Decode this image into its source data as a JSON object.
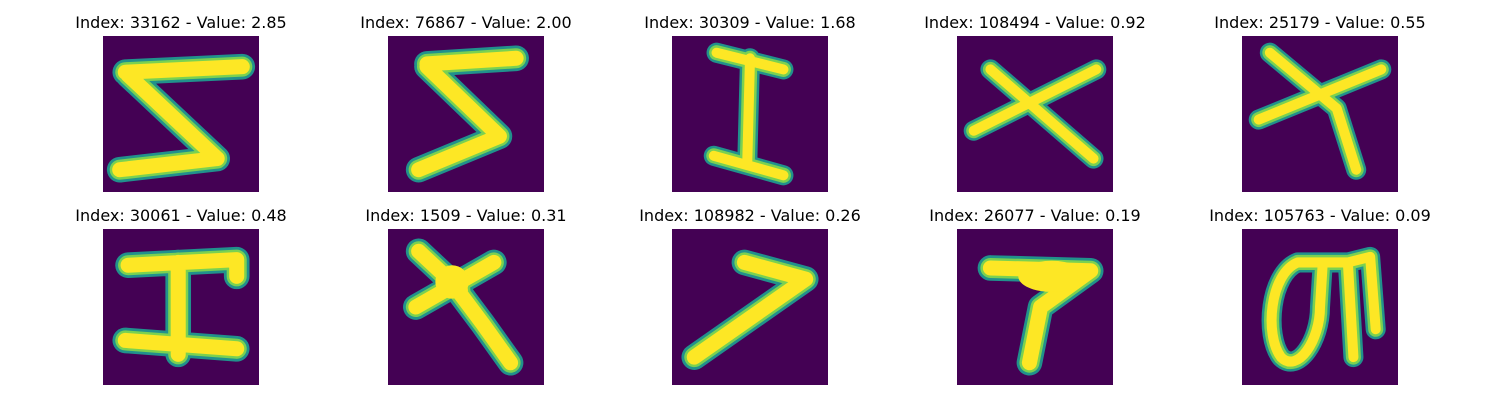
{
  "colors": {
    "background": "#440154",
    "stroke_edge": "#21918c",
    "stroke_mid": "#7ad151",
    "stroke_core": "#fde725"
  },
  "panels": [
    {
      "title": "Index: 33162 - Value: 2.85",
      "glyph": "five-like"
    },
    {
      "title": "Index: 76867 - Value: 2.00",
      "glyph": "five-like"
    },
    {
      "title": "Index: 30309 - Value: 1.68",
      "glyph": "capital-i"
    },
    {
      "title": "Index: 108494 - Value: 0.92",
      "glyph": "x-cross"
    },
    {
      "title": "Index: 25179 - Value: 0.55",
      "glyph": "x-cross"
    },
    {
      "title": "Index: 30061 - Value: 0.48",
      "glyph": "capital-i"
    },
    {
      "title": "Index: 1509 - Value: 0.31",
      "glyph": "x-cross"
    },
    {
      "title": "Index: 108982 - Value: 0.26",
      "glyph": "seven-like"
    },
    {
      "title": "Index: 26077 - Value: 0.19",
      "glyph": "seven-like"
    },
    {
      "title": "Index: 105763 - Value: 0.09",
      "glyph": "loop-glyph"
    }
  ]
}
